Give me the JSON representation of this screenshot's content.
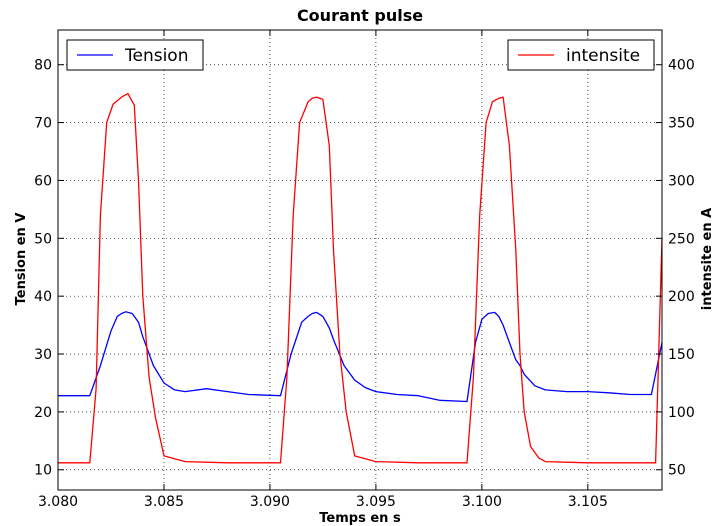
{
  "chart_data": {
    "type": "line",
    "title": "Courant pulse",
    "xlabel": "Temps en s",
    "ylabel_left": "Tension en V",
    "ylabel_right": "intensite en A",
    "xlim": [
      3.08,
      3.1085
    ],
    "ylim_left": [
      6.5,
      86
    ],
    "ylim_right": [
      32.5,
      430
    ],
    "x_ticks": [
      "3.080",
      "3.085",
      "3.090",
      "3.095",
      "3.100",
      "3.105"
    ],
    "x_tick_values": [
      3.08,
      3.085,
      3.09,
      3.095,
      3.1,
      3.105
    ],
    "y_ticks_left": [
      "10",
      "20",
      "30",
      "40",
      "50",
      "60",
      "70",
      "80"
    ],
    "y_tick_values_left": [
      10,
      20,
      30,
      40,
      50,
      60,
      70,
      80
    ],
    "y_ticks_right": [
      "50",
      "100",
      "150",
      "200",
      "250",
      "300",
      "350",
      "400"
    ],
    "y_tick_values_right": [
      50,
      100,
      150,
      200,
      250,
      300,
      350,
      400
    ],
    "grid": true,
    "series": [
      {
        "name": "Tension",
        "axis": "left",
        "color": "#0000ff",
        "legend_position": "upper left",
        "x": [
          3.08,
          3.0815,
          3.082,
          3.0825,
          3.0828,
          3.083,
          3.0832,
          3.0835,
          3.0838,
          3.084,
          3.0845,
          3.085,
          3.0855,
          3.086,
          3.087,
          3.088,
          3.089,
          3.0905,
          3.091,
          3.0915,
          3.0918,
          3.092,
          3.0922,
          3.0925,
          3.0928,
          3.093,
          3.0935,
          3.094,
          3.0945,
          3.095,
          3.096,
          3.097,
          3.098,
          3.0993,
          3.0997,
          3.1,
          3.1003,
          3.1006,
          3.1008,
          3.101,
          3.1013,
          3.1016,
          3.1018,
          3.102,
          3.1025,
          3.103,
          3.104,
          3.105,
          3.106,
          3.107,
          3.108,
          3.1085
        ],
        "y": [
          22.8,
          22.8,
          28.0,
          34.0,
          36.5,
          37.0,
          37.3,
          37.0,
          35.5,
          33.0,
          28.0,
          25.0,
          23.8,
          23.5,
          24.0,
          23.5,
          23.0,
          22.8,
          30.0,
          35.5,
          36.5,
          37.0,
          37.2,
          36.5,
          34.5,
          32.5,
          28.0,
          25.5,
          24.2,
          23.5,
          23.0,
          22.8,
          22.0,
          21.8,
          32.0,
          36.0,
          37.0,
          37.2,
          36.5,
          35.0,
          32.0,
          29.0,
          28.0,
          26.5,
          24.5,
          23.8,
          23.5,
          23.5,
          23.3,
          23.0,
          23.0,
          32.0
        ]
      },
      {
        "name": "intensite",
        "axis": "right",
        "color": "#ff0000",
        "legend_position": "upper right",
        "x": [
          3.08,
          3.0815,
          3.0818,
          3.082,
          3.0823,
          3.0826,
          3.083,
          3.0833,
          3.0836,
          3.0838,
          3.084,
          3.0843,
          3.0846,
          3.085,
          3.086,
          3.088,
          3.09,
          3.0905,
          3.0908,
          3.0911,
          3.0914,
          3.0918,
          3.092,
          3.0922,
          3.0925,
          3.0928,
          3.093,
          3.0933,
          3.0936,
          3.094,
          3.095,
          3.097,
          3.099,
          3.0993,
          3.0996,
          3.0999,
          3.1002,
          3.1005,
          3.1008,
          3.101,
          3.1013,
          3.1016,
          3.1018,
          3.102,
          3.1023,
          3.1027,
          3.103,
          3.105,
          3.107,
          3.1082,
          3.1085
        ],
        "y": [
          56,
          56,
          120,
          270,
          350,
          366,
          372,
          375,
          365,
          300,
          200,
          130,
          95,
          62,
          57,
          56,
          56,
          56,
          130,
          270,
          350,
          368,
          371,
          372,
          370,
          330,
          240,
          150,
          100,
          62,
          57,
          56,
          56,
          56,
          130,
          270,
          350,
          368,
          371,
          372,
          330,
          240,
          150,
          100,
          70,
          60,
          57,
          56,
          56,
          56,
          250
        ]
      }
    ]
  }
}
